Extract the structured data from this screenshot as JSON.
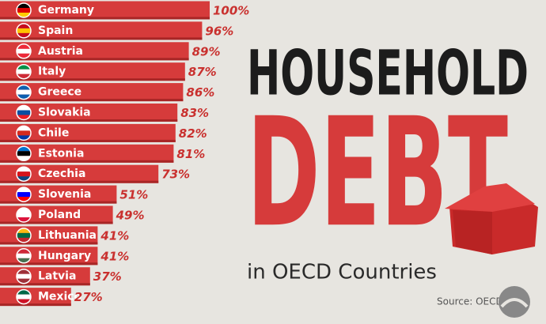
{
  "chart_data": {
    "type": "bar",
    "orientation": "horizontal",
    "title_lines": [
      "HOUSEHOLD",
      "DEBT"
    ],
    "subtitle": "in OECD Countries",
    "source": "Source: OECD",
    "categories": [
      "Germany",
      "Spain",
      "Austria",
      "Italy",
      "Greece",
      "Slovakia",
      "Chile",
      "Estonia",
      "Czechia",
      "Slovenia",
      "Poland",
      "Lithuania",
      "Hungary",
      "Latvia",
      "Mexico"
    ],
    "values": [
      100,
      96,
      89,
      87,
      86,
      83,
      82,
      81,
      73,
      51,
      49,
      41,
      41,
      37,
      27
    ],
    "value_labels": [
      "100%",
      "96%",
      "89%",
      "87%",
      "86%",
      "83%",
      "82%",
      "81%",
      "73%",
      "51%",
      "49%",
      "41%",
      "41%",
      "37%",
      "27%"
    ],
    "color": "#d63b3b",
    "xlim": [
      0,
      100
    ]
  }
}
